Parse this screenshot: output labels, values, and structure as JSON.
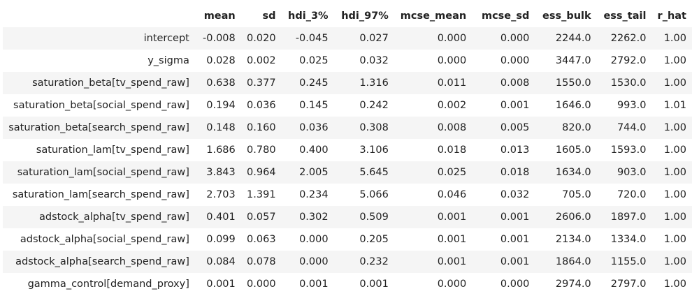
{
  "table": {
    "columns": [
      "",
      "mean",
      "sd",
      "hdi_3%",
      "hdi_97%",
      "mcse_mean",
      "mcse_sd",
      "ess_bulk",
      "ess_tail",
      "r_hat"
    ],
    "rows": [
      [
        "intercept",
        "-0.008",
        "0.020",
        "-0.045",
        "0.027",
        "0.000",
        "0.000",
        "2244.0",
        "2262.0",
        "1.00"
      ],
      [
        "y_sigma",
        "0.028",
        "0.002",
        "0.025",
        "0.032",
        "0.000",
        "0.000",
        "3447.0",
        "2792.0",
        "1.00"
      ],
      [
        "saturation_beta[tv_spend_raw]",
        "0.638",
        "0.377",
        "0.245",
        "1.316",
        "0.011",
        "0.008",
        "1550.0",
        "1530.0",
        "1.00"
      ],
      [
        "saturation_beta[social_spend_raw]",
        "0.194",
        "0.036",
        "0.145",
        "0.242",
        "0.002",
        "0.001",
        "1646.0",
        "993.0",
        "1.01"
      ],
      [
        "saturation_beta[search_spend_raw]",
        "0.148",
        "0.160",
        "0.036",
        "0.308",
        "0.008",
        "0.005",
        "820.0",
        "744.0",
        "1.00"
      ],
      [
        "saturation_lam[tv_spend_raw]",
        "1.686",
        "0.780",
        "0.400",
        "3.106",
        "0.018",
        "0.013",
        "1605.0",
        "1593.0",
        "1.00"
      ],
      [
        "saturation_lam[social_spend_raw]",
        "3.843",
        "0.964",
        "2.005",
        "5.645",
        "0.025",
        "0.018",
        "1634.0",
        "903.0",
        "1.00"
      ],
      [
        "saturation_lam[search_spend_raw]",
        "2.703",
        "1.391",
        "0.234",
        "5.066",
        "0.046",
        "0.032",
        "705.0",
        "720.0",
        "1.00"
      ],
      [
        "adstock_alpha[tv_spend_raw]",
        "0.401",
        "0.057",
        "0.302",
        "0.509",
        "0.001",
        "0.001",
        "2606.0",
        "1897.0",
        "1.00"
      ],
      [
        "adstock_alpha[social_spend_raw]",
        "0.099",
        "0.063",
        "0.000",
        "0.205",
        "0.001",
        "0.001",
        "2134.0",
        "1334.0",
        "1.00"
      ],
      [
        "adstock_alpha[search_spend_raw]",
        "0.084",
        "0.078",
        "0.000",
        "0.232",
        "0.001",
        "0.001",
        "1864.0",
        "1155.0",
        "1.00"
      ],
      [
        "gamma_control[demand_proxy]",
        "0.001",
        "0.000",
        "0.001",
        "0.001",
        "0.000",
        "0.000",
        "2974.0",
        "2797.0",
        "1.00"
      ]
    ]
  }
}
